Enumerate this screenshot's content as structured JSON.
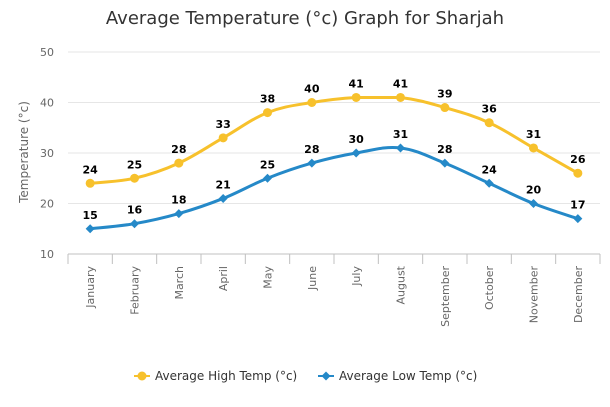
{
  "chart_data": {
    "type": "line",
    "title": "Average Temperature (°c) Graph for Sharjah",
    "xlabel": "",
    "ylabel": "Temperature (°c)",
    "ylim": [
      10,
      50
    ],
    "yticks": [
      10,
      20,
      30,
      40,
      50
    ],
    "grid": true,
    "legend_position": "bottom",
    "categories": [
      "January",
      "February",
      "March",
      "April",
      "May",
      "June",
      "July",
      "August",
      "September",
      "October",
      "November",
      "December"
    ],
    "series": [
      {
        "name": "Average High Temp (°c)",
        "color": "#f7c12c",
        "marker": "circle",
        "values": [
          24,
          25,
          28,
          33,
          38,
          40,
          41,
          41,
          39,
          36,
          31,
          26
        ]
      },
      {
        "name": "Average Low Temp (°c)",
        "color": "#2589c8",
        "marker": "diamond",
        "values": [
          15,
          16,
          18,
          21,
          25,
          28,
          30,
          31,
          28,
          24,
          20,
          17
        ]
      }
    ]
  }
}
